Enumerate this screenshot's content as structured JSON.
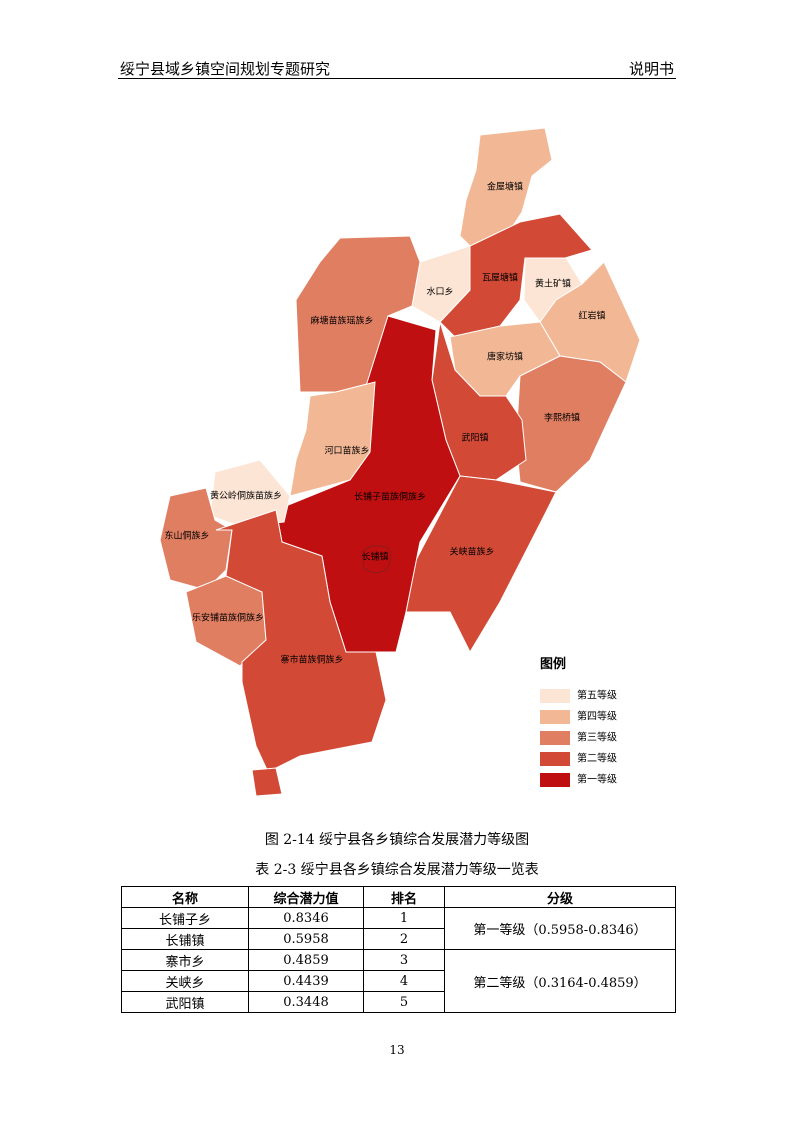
{
  "header": {
    "title": "绥宁县域乡镇空间规划专题研究",
    "right": "说明书"
  },
  "map": {
    "regions": [
      {
        "label": "金屋塘镇",
        "color": "#f2b896"
      },
      {
        "label": "黄土矿镇",
        "color": "#fde5d5"
      },
      {
        "label": "瓦屋塘镇",
        "color": "#d24a36"
      },
      {
        "label": "水口乡",
        "color": "#fde5d5"
      },
      {
        "label": "红岩镇",
        "color": "#f2b896"
      },
      {
        "label": "唐家坊镇",
        "color": "#f2b896"
      },
      {
        "label": "李熙桥镇",
        "color": "#e07e62"
      },
      {
        "label": "麻塘苗族瑶族乡",
        "color": "#e07e62"
      },
      {
        "label": "武阳镇",
        "color": "#d24a36"
      },
      {
        "label": "关峡苗族乡",
        "color": "#d24a36"
      },
      {
        "label": "长铺子苗族侗族乡",
        "color": "#c00f10"
      },
      {
        "label": "河口苗族乡",
        "color": "#f2b896"
      },
      {
        "label": "黄公岭侗族苗族乡",
        "color": "#fde5d5"
      },
      {
        "label": "东山侗族乡",
        "color": "#e07e62"
      },
      {
        "label": "乐安铺苗族侗族乡",
        "color": "#e07e62"
      },
      {
        "label": "寨市苗族侗族乡",
        "color": "#d24a36"
      }
    ],
    "town_label": "长铺镇",
    "legend": {
      "title": "图例",
      "items": [
        {
          "label": "第五等级",
          "color": "#fde5d5"
        },
        {
          "label": "第四等级",
          "color": "#f2b896"
        },
        {
          "label": "第三等级",
          "color": "#e07e62"
        },
        {
          "label": "第二等级",
          "color": "#d24a36"
        },
        {
          "label": "第一等级",
          "color": "#c00f10"
        }
      ]
    }
  },
  "figure_caption": "图 2-14 绥宁县各乡镇综合发展潜力等级图",
  "table": {
    "caption": "表 2-3 绥宁县各乡镇综合发展潜力等级一览表",
    "headers": [
      "名称",
      "综合潜力值",
      "排名",
      "分级"
    ],
    "rows": [
      [
        "长铺子乡",
        "0.8346",
        "1",
        "第一等级（0.5958-0.8346）"
      ],
      [
        "长铺镇",
        "0.5958",
        "2"
      ],
      [
        "寨市乡",
        "0.4859",
        "3",
        "第二等级（0.3164-0.4859）"
      ],
      [
        "关峡乡",
        "0.4439",
        "4"
      ],
      [
        "武阳镇",
        "0.3448",
        "5"
      ]
    ]
  },
  "page_number": "13"
}
